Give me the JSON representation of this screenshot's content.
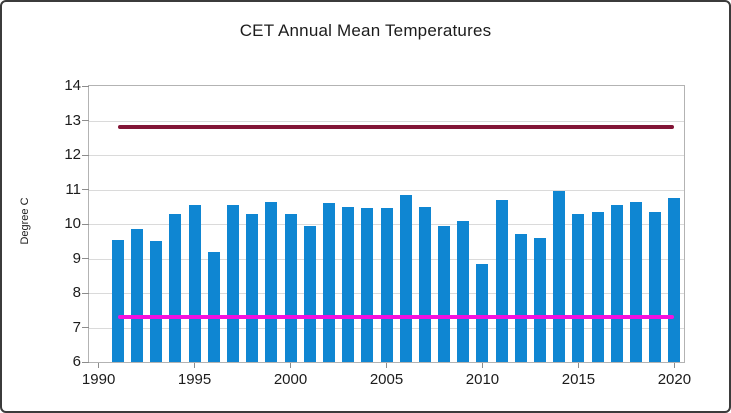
{
  "figure": {
    "background": "#ffffff",
    "border_color": "#3b3b3b"
  },
  "chart_data": {
    "type": "bar",
    "title": "CET Annual Mean Temperatures",
    "xlabel": "",
    "ylabel": "Degree C",
    "ylim": [
      6,
      14
    ],
    "y_ticks": [
      6,
      7,
      8,
      9,
      10,
      11,
      12,
      13,
      14
    ],
    "x_ticks": [
      1990,
      1995,
      2000,
      2005,
      2010,
      2015,
      2020
    ],
    "x_range": [
      1990,
      2020
    ],
    "grid": "horizontal-only",
    "legend": "none",
    "categories": [
      1991,
      1992,
      1993,
      1994,
      1995,
      1996,
      1997,
      1998,
      1999,
      2000,
      2001,
      2002,
      2003,
      2004,
      2005,
      2006,
      2007,
      2008,
      2009,
      2010,
      2011,
      2012,
      2013,
      2014,
      2015,
      2016,
      2017,
      2018,
      2019,
      2020
    ],
    "series": [
      {
        "name": "annual_mean",
        "type": "bar",
        "color": "#0F86D2",
        "values": [
          9.55,
          9.85,
          9.5,
          10.3,
          10.55,
          9.2,
          10.55,
          10.3,
          10.65,
          10.3,
          9.95,
          10.6,
          10.5,
          10.45,
          10.45,
          10.85,
          10.5,
          9.95,
          10.1,
          8.85,
          10.7,
          9.7,
          9.6,
          10.95,
          10.3,
          10.35,
          10.55,
          10.65,
          10.35,
          10.75
        ]
      },
      {
        "name": "upper_reference_line",
        "type": "hline",
        "color": "#821536",
        "value": 12.8,
        "span": [
          1991,
          2020
        ]
      },
      {
        "name": "lower_reference_line",
        "type": "hline",
        "color": "#F410DE",
        "value": 7.3,
        "span": [
          1991,
          2020
        ]
      }
    ]
  }
}
